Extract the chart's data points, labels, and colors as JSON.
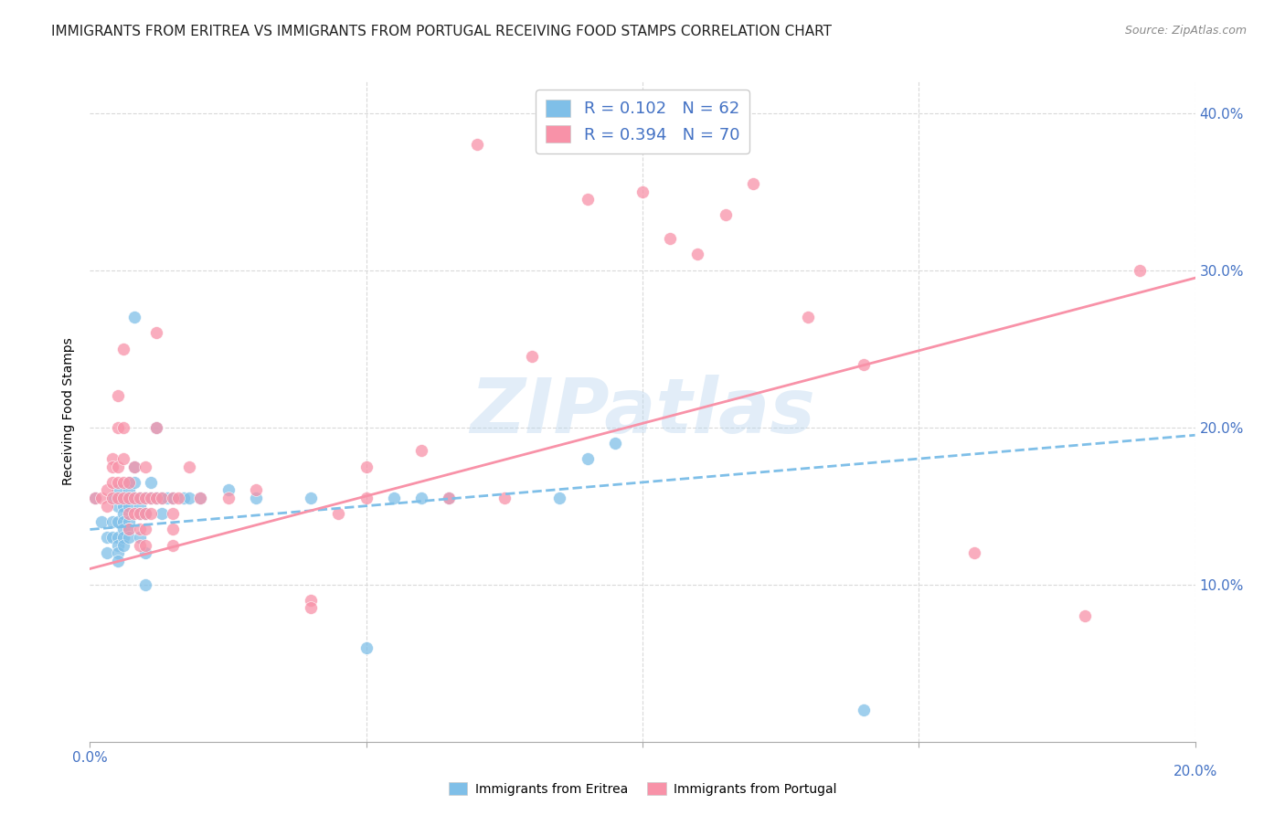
{
  "title": "IMMIGRANTS FROM ERITREA VS IMMIGRANTS FROM PORTUGAL RECEIVING FOOD STAMPS CORRELATION CHART",
  "source": "Source: ZipAtlas.com",
  "ylabel": "Receiving Food Stamps",
  "xlim": [
    0.0,
    0.2
  ],
  "ylim": [
    0.0,
    0.42
  ],
  "xticks": [
    0.0,
    0.05,
    0.1,
    0.15,
    0.2
  ],
  "yticks": [
    0.0,
    0.1,
    0.2,
    0.3,
    0.4
  ],
  "eritrea_color": "#7fbfe8",
  "portugal_color": "#f892a8",
  "eritrea_R": 0.102,
  "eritrea_N": 62,
  "portugal_R": 0.394,
  "portugal_N": 70,
  "watermark": "ZIPatlas",
  "background_color": "#ffffff",
  "grid_color": "#d9d9d9",
  "axis_label_color": "#4472c4",
  "title_color": "#222222",
  "eritrea_points": [
    [
      0.001,
      0.155
    ],
    [
      0.002,
      0.14
    ],
    [
      0.003,
      0.13
    ],
    [
      0.003,
      0.12
    ],
    [
      0.004,
      0.155
    ],
    [
      0.004,
      0.14
    ],
    [
      0.004,
      0.13
    ],
    [
      0.005,
      0.16
    ],
    [
      0.005,
      0.15
    ],
    [
      0.005,
      0.14
    ],
    [
      0.005,
      0.13
    ],
    [
      0.005,
      0.125
    ],
    [
      0.005,
      0.12
    ],
    [
      0.005,
      0.115
    ],
    [
      0.006,
      0.155
    ],
    [
      0.006,
      0.15
    ],
    [
      0.006,
      0.145
    ],
    [
      0.006,
      0.14
    ],
    [
      0.006,
      0.135
    ],
    [
      0.006,
      0.13
    ],
    [
      0.006,
      0.125
    ],
    [
      0.007,
      0.165
    ],
    [
      0.007,
      0.16
    ],
    [
      0.007,
      0.155
    ],
    [
      0.007,
      0.15
    ],
    [
      0.007,
      0.14
    ],
    [
      0.007,
      0.135
    ],
    [
      0.007,
      0.13
    ],
    [
      0.008,
      0.27
    ],
    [
      0.008,
      0.175
    ],
    [
      0.008,
      0.165
    ],
    [
      0.008,
      0.155
    ],
    [
      0.009,
      0.155
    ],
    [
      0.009,
      0.15
    ],
    [
      0.009,
      0.145
    ],
    [
      0.009,
      0.13
    ],
    [
      0.01,
      0.155
    ],
    [
      0.01,
      0.145
    ],
    [
      0.01,
      0.12
    ],
    [
      0.01,
      0.1
    ],
    [
      0.011,
      0.165
    ],
    [
      0.011,
      0.155
    ],
    [
      0.012,
      0.2
    ],
    [
      0.012,
      0.155
    ],
    [
      0.013,
      0.155
    ],
    [
      0.013,
      0.145
    ],
    [
      0.014,
      0.155
    ],
    [
      0.015,
      0.155
    ],
    [
      0.017,
      0.155
    ],
    [
      0.018,
      0.155
    ],
    [
      0.02,
      0.155
    ],
    [
      0.025,
      0.16
    ],
    [
      0.03,
      0.155
    ],
    [
      0.04,
      0.155
    ],
    [
      0.05,
      0.06
    ],
    [
      0.055,
      0.155
    ],
    [
      0.06,
      0.155
    ],
    [
      0.065,
      0.155
    ],
    [
      0.085,
      0.155
    ],
    [
      0.09,
      0.18
    ],
    [
      0.095,
      0.19
    ],
    [
      0.14,
      0.02
    ]
  ],
  "portugal_points": [
    [
      0.001,
      0.155
    ],
    [
      0.002,
      0.155
    ],
    [
      0.003,
      0.16
    ],
    [
      0.003,
      0.15
    ],
    [
      0.004,
      0.18
    ],
    [
      0.004,
      0.175
    ],
    [
      0.004,
      0.165
    ],
    [
      0.004,
      0.155
    ],
    [
      0.005,
      0.22
    ],
    [
      0.005,
      0.2
    ],
    [
      0.005,
      0.175
    ],
    [
      0.005,
      0.165
    ],
    [
      0.005,
      0.155
    ],
    [
      0.006,
      0.25
    ],
    [
      0.006,
      0.2
    ],
    [
      0.006,
      0.18
    ],
    [
      0.006,
      0.165
    ],
    [
      0.006,
      0.155
    ],
    [
      0.007,
      0.165
    ],
    [
      0.007,
      0.155
    ],
    [
      0.007,
      0.145
    ],
    [
      0.007,
      0.135
    ],
    [
      0.008,
      0.175
    ],
    [
      0.008,
      0.155
    ],
    [
      0.008,
      0.145
    ],
    [
      0.009,
      0.155
    ],
    [
      0.009,
      0.145
    ],
    [
      0.009,
      0.135
    ],
    [
      0.009,
      0.125
    ],
    [
      0.01,
      0.175
    ],
    [
      0.01,
      0.155
    ],
    [
      0.01,
      0.145
    ],
    [
      0.01,
      0.135
    ],
    [
      0.01,
      0.125
    ],
    [
      0.011,
      0.155
    ],
    [
      0.011,
      0.145
    ],
    [
      0.012,
      0.26
    ],
    [
      0.012,
      0.2
    ],
    [
      0.012,
      0.155
    ],
    [
      0.013,
      0.155
    ],
    [
      0.015,
      0.155
    ],
    [
      0.015,
      0.145
    ],
    [
      0.015,
      0.135
    ],
    [
      0.015,
      0.125
    ],
    [
      0.016,
      0.155
    ],
    [
      0.018,
      0.175
    ],
    [
      0.02,
      0.155
    ],
    [
      0.025,
      0.155
    ],
    [
      0.03,
      0.16
    ],
    [
      0.04,
      0.09
    ],
    [
      0.04,
      0.085
    ],
    [
      0.045,
      0.145
    ],
    [
      0.05,
      0.175
    ],
    [
      0.05,
      0.155
    ],
    [
      0.06,
      0.185
    ],
    [
      0.065,
      0.155
    ],
    [
      0.07,
      0.38
    ],
    [
      0.075,
      0.155
    ],
    [
      0.08,
      0.245
    ],
    [
      0.09,
      0.345
    ],
    [
      0.1,
      0.35
    ],
    [
      0.105,
      0.32
    ],
    [
      0.11,
      0.31
    ],
    [
      0.115,
      0.335
    ],
    [
      0.12,
      0.355
    ],
    [
      0.13,
      0.27
    ],
    [
      0.14,
      0.24
    ],
    [
      0.16,
      0.12
    ],
    [
      0.18,
      0.08
    ],
    [
      0.19,
      0.3
    ]
  ],
  "eritrea_line": {
    "x0": 0.0,
    "x1": 0.2,
    "y0": 0.135,
    "y1": 0.195
  },
  "portugal_line": {
    "x0": 0.0,
    "x1": 0.2,
    "y0": 0.11,
    "y1": 0.295
  },
  "title_fontsize": 11,
  "label_fontsize": 10,
  "tick_fontsize": 11,
  "legend_fontsize": 13
}
